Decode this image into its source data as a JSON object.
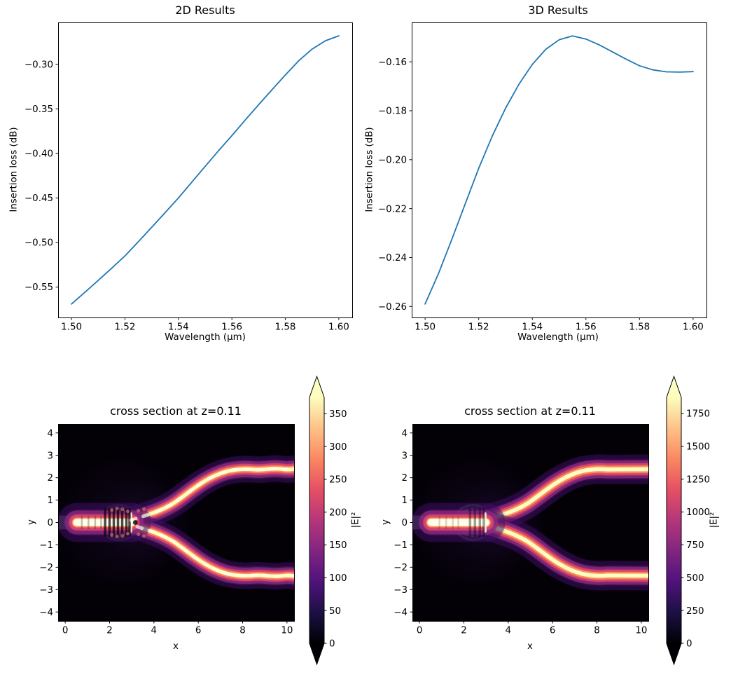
{
  "palette": {
    "series_line": "#1f77b4",
    "magma_stops": [
      "#000004",
      "#1c1044",
      "#4f127b",
      "#812581",
      "#b5367a",
      "#e55064",
      "#fb8761",
      "#fec287",
      "#fcfdbf"
    ]
  },
  "chart_data": [
    {
      "id": "insertion-loss-2d",
      "type": "line",
      "title": "2D Results",
      "xlabel": "Wavelength (μm)",
      "ylabel": "Insertion loss (dB)",
      "x": [
        1.5,
        1.505,
        1.51,
        1.515,
        1.52,
        1.525,
        1.53,
        1.535,
        1.54,
        1.545,
        1.55,
        1.555,
        1.56,
        1.565,
        1.57,
        1.575,
        1.58,
        1.585,
        1.59,
        1.595,
        1.6
      ],
      "y": [
        -0.569,
        -0.5559,
        -0.5425,
        -0.5289,
        -0.515,
        -0.4992,
        -0.483,
        -0.4665,
        -0.45,
        -0.4322,
        -0.4145,
        -0.397,
        -0.38,
        -0.3625,
        -0.3453,
        -0.3285,
        -0.312,
        -0.296,
        -0.283,
        -0.2735,
        -0.268
      ],
      "xlim": [
        1.495,
        1.605
      ],
      "ylim": [
        -0.5841,
        -0.253
      ],
      "xticks": {
        "values": [
          1.5,
          1.52,
          1.54,
          1.56,
          1.58,
          1.6
        ],
        "labels": [
          "1.50",
          "1.52",
          "1.54",
          "1.56",
          "1.58",
          "1.60"
        ]
      },
      "yticks": {
        "values": [
          -0.3,
          -0.35,
          -0.4,
          -0.45,
          -0.5,
          -0.55
        ],
        "labels": [
          "−0.30",
          "−0.35",
          "−0.40",
          "−0.45",
          "−0.50",
          "−0.55"
        ]
      },
      "grid": false,
      "legend": null
    },
    {
      "id": "insertion-loss-3d",
      "type": "line",
      "title": "3D Results",
      "xlabel": "Wavelength (μm)",
      "ylabel": "Insertion loss (dB)",
      "x": [
        1.5,
        1.505,
        1.51,
        1.515,
        1.52,
        1.525,
        1.53,
        1.535,
        1.54,
        1.545,
        1.55,
        1.555,
        1.56,
        1.565,
        1.57,
        1.575,
        1.58,
        1.585,
        1.59,
        1.595,
        1.6
      ],
      "y": [
        -0.259,
        -0.2465,
        -0.2325,
        -0.218,
        -0.2035,
        -0.1905,
        -0.179,
        -0.1692,
        -0.1611,
        -0.1549,
        -0.151,
        -0.1494,
        -0.1507,
        -0.1531,
        -0.156,
        -0.1589,
        -0.1616,
        -0.1633,
        -0.1641,
        -0.1642,
        -0.164
      ],
      "xlim": [
        1.495,
        1.605
      ],
      "ylim": [
        -0.2645,
        -0.1439
      ],
      "xticks": {
        "values": [
          1.5,
          1.52,
          1.54,
          1.56,
          1.58,
          1.6
        ],
        "labels": [
          "1.50",
          "1.52",
          "1.54",
          "1.56",
          "1.58",
          "1.60"
        ]
      },
      "yticks": {
        "values": [
          -0.16,
          -0.18,
          -0.2,
          -0.22,
          -0.24,
          -0.26
        ],
        "labels": [
          "−0.16",
          "−0.18",
          "−0.20",
          "−0.22",
          "−0.24",
          "−0.26"
        ]
      },
      "grid": false,
      "legend": null
    },
    {
      "id": "field-cross-section-2d",
      "type": "heatmap",
      "title": "cross section at z=0.11",
      "xlabel": "x",
      "ylabel": "y",
      "xlim": [
        -0.32,
        10.32
      ],
      "ylim": [
        -4.4,
        4.4
      ],
      "xticks": {
        "values": [
          0,
          2,
          4,
          6,
          8,
          10
        ],
        "labels": [
          "0",
          "2",
          "4",
          "6",
          "8",
          "10"
        ]
      },
      "yticks": {
        "values": [
          4,
          3,
          2,
          1,
          0,
          -1,
          -2,
          -3,
          -4
        ],
        "labels": [
          "4",
          "3",
          "2",
          "1",
          "0",
          "−1",
          "−2",
          "−3",
          "−4"
        ]
      },
      "colorbar": {
        "label": "|E|²",
        "ticks": [
          0,
          50,
          100,
          150,
          200,
          250,
          300,
          350
        ],
        "tick_labels": [
          "0",
          "50",
          "100",
          "150",
          "200",
          "250",
          "300",
          "350"
        ],
        "vmin": 0,
        "vmax": 375,
        "extend": "both",
        "colormap": "magma"
      },
      "field": {
        "style": "speckled",
        "device": "y-branch-splitter",
        "input_y": 0,
        "split_x": 3.0,
        "arm_end_y": 2.38,
        "sbend_x_end": 7.9,
        "x_end": 10.32
      }
    },
    {
      "id": "field-cross-section-3d",
      "type": "heatmap",
      "title": "cross section at z=0.11",
      "xlabel": "x",
      "ylabel": "y",
      "xlim": [
        -0.32,
        10.32
      ],
      "ylim": [
        -4.4,
        4.4
      ],
      "xticks": {
        "values": [
          0,
          2,
          4,
          6,
          8,
          10
        ],
        "labels": [
          "0",
          "2",
          "4",
          "6",
          "8",
          "10"
        ]
      },
      "yticks": {
        "values": [
          4,
          3,
          2,
          1,
          0,
          -1,
          -2,
          -3,
          -4
        ],
        "labels": [
          "4",
          "3",
          "2",
          "1",
          "0",
          "−1",
          "−2",
          "−3",
          "−4"
        ]
      },
      "colorbar": {
        "label": "|E|²",
        "ticks": [
          0,
          250,
          500,
          750,
          1000,
          1250,
          1500,
          1750
        ],
        "tick_labels": [
          "0",
          "250",
          "500",
          "750",
          "1000",
          "1250",
          "1500",
          "1750"
        ],
        "vmin": 0,
        "vmax": 1873,
        "extend": "both",
        "colormap": "magma"
      },
      "field": {
        "style": "smooth",
        "device": "y-branch-splitter",
        "input_y": 0,
        "split_x": 3.0,
        "arm_end_y": 2.38,
        "sbend_x_end": 7.9,
        "x_end": 10.32
      }
    }
  ]
}
